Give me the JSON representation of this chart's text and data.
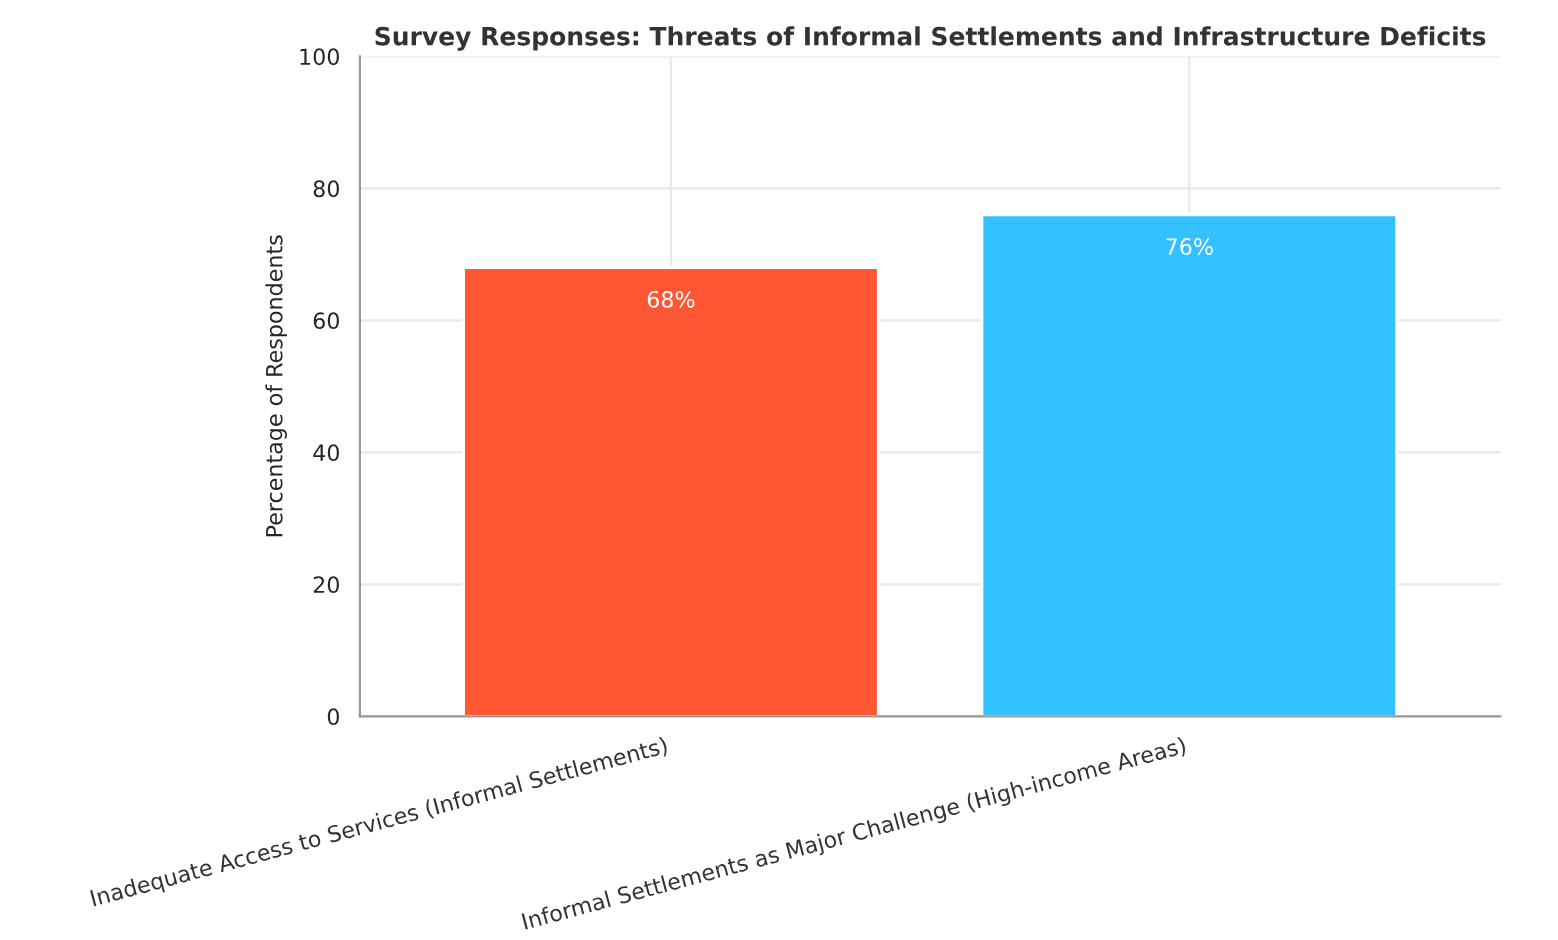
{
  "chart_data": {
    "type": "bar",
    "title": "Survey Responses: Threats of Informal Settlements and Infrastructure Deficits",
    "ylabel": "Percentage of Respondents",
    "categories": [
      "Inadequate Access to Services (Informal Settlements)",
      "Informal Settlements as Major Challenge (High-income Areas)"
    ],
    "values": [
      68,
      76
    ],
    "value_labels": [
      "68%",
      "76%"
    ],
    "colors": [
      "#ff5733",
      "#33c1ff"
    ],
    "ylim": [
      0,
      100
    ],
    "yticks": [
      0,
      20,
      40,
      60,
      80,
      100
    ],
    "grid": true
  }
}
